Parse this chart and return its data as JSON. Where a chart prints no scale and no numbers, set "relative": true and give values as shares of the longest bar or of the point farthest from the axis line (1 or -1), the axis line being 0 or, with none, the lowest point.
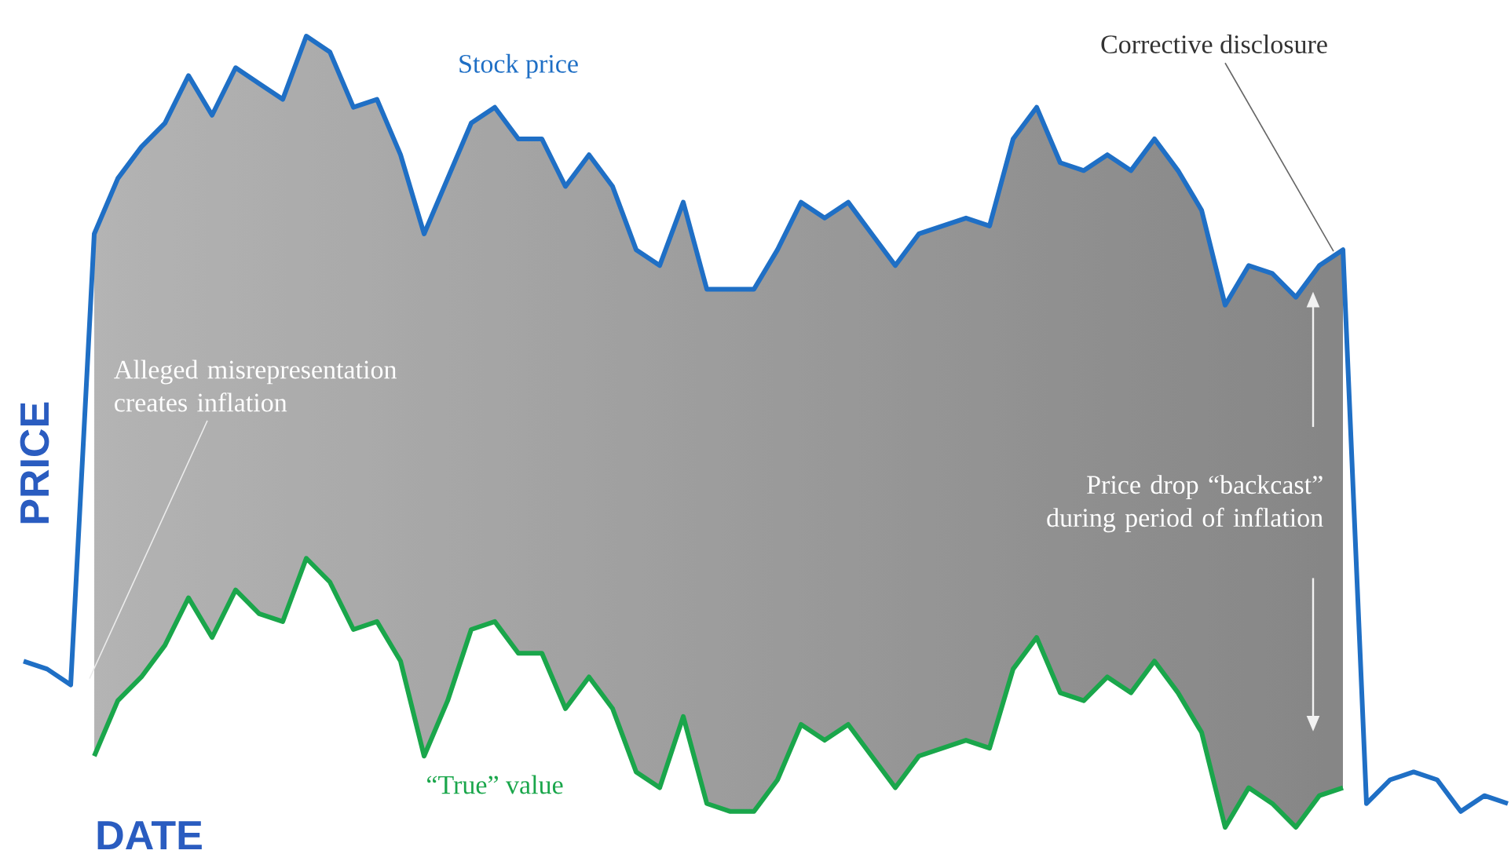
{
  "chart_data": {
    "type": "line",
    "relative": true,
    "xlabel": "DATE",
    "ylabel": "PRICE",
    "categories": [
      null,
      null,
      null,
      null,
      null,
      null,
      null,
      null,
      null,
      null,
      null,
      null,
      null,
      null,
      null,
      null,
      null,
      null,
      null,
      null,
      null,
      null,
      null,
      null,
      null,
      null,
      null,
      null,
      null,
      null,
      null,
      null,
      null,
      null,
      null,
      null,
      null,
      null,
      null,
      null,
      null,
      null,
      null,
      null,
      null,
      null,
      null,
      null,
      null,
      null,
      null,
      null,
      null,
      null,
      null,
      null,
      null,
      null,
      null,
      null,
      null,
      null,
      null,
      null
    ],
    "series": [
      {
        "name": "Stock price",
        "color": "#1f6fc5",
        "values": [
          0.21,
          0.2,
          0.18,
          0.75,
          0.82,
          0.86,
          0.89,
          0.95,
          0.9,
          0.96,
          0.94,
          0.92,
          1.0,
          0.98,
          0.91,
          0.92,
          0.85,
          0.75,
          0.82,
          0.89,
          0.91,
          0.87,
          0.87,
          0.81,
          0.85,
          0.81,
          0.73,
          0.71,
          0.79,
          0.68,
          0.68,
          0.68,
          0.73,
          0.79,
          0.77,
          0.79,
          0.75,
          0.71,
          0.75,
          0.76,
          0.77,
          0.76,
          0.87,
          0.91,
          0.84,
          0.83,
          0.85,
          0.83,
          0.87,
          0.83,
          0.78,
          0.66,
          0.71,
          0.7,
          0.67,
          0.71,
          0.73,
          0.03,
          0.06,
          0.07,
          0.06,
          0.02,
          0.04,
          0.03
        ]
      },
      {
        "name": "“True” value",
        "color": "#1aa64b",
        "values": [
          null,
          null,
          null,
          0.09,
          0.16,
          0.19,
          0.23,
          0.29,
          0.24,
          0.3,
          0.27,
          0.26,
          0.34,
          0.31,
          0.25,
          0.26,
          0.21,
          0.09,
          0.16,
          0.25,
          0.26,
          0.22,
          0.22,
          0.15,
          0.19,
          0.15,
          0.07,
          0.05,
          0.14,
          0.03,
          0.02,
          0.02,
          0.06,
          0.13,
          0.11,
          0.13,
          0.09,
          0.05,
          0.09,
          0.1,
          0.11,
          0.1,
          0.2,
          0.24,
          0.17,
          0.16,
          0.19,
          0.17,
          0.21,
          0.17,
          0.12,
          0.0,
          0.05,
          0.03,
          0.0,
          0.04,
          0.05,
          null,
          null,
          null,
          null,
          null,
          null,
          null
        ]
      }
    ],
    "annotations": [
      "Alleged misrepresentation creates inflation",
      "Corrective disclosure",
      "Price drop “backcast” during period of inflation"
    ]
  }
}
